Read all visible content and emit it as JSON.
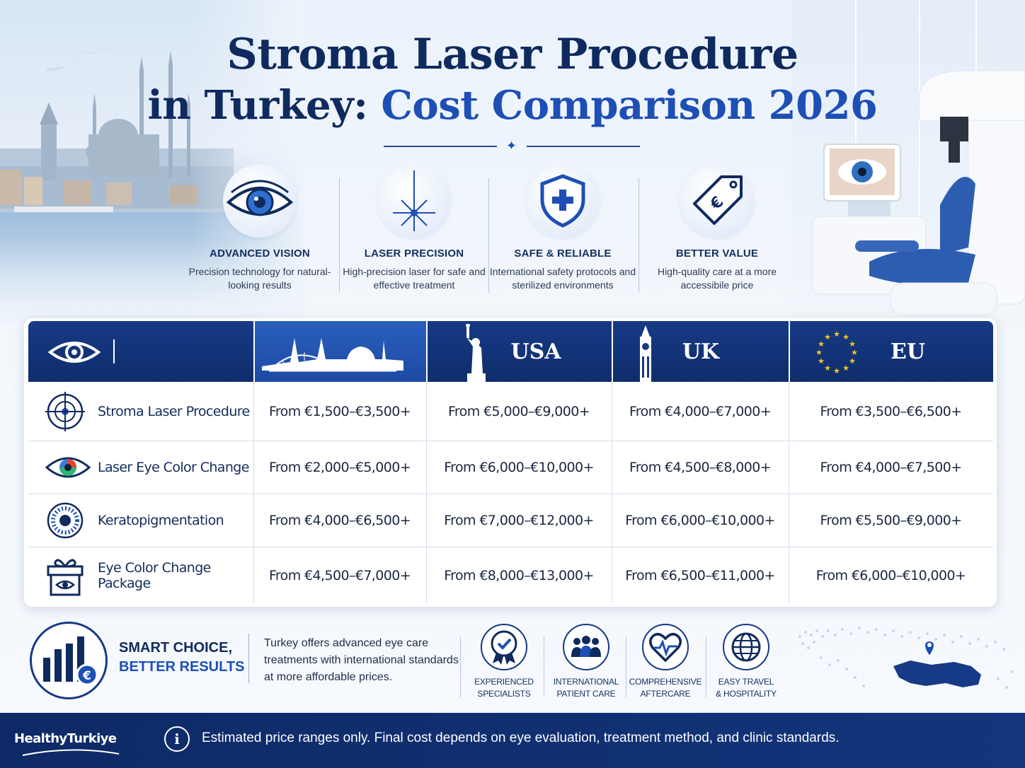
{
  "title": {
    "line1": "Stroma Laser Procedure",
    "line2_prefix": "in Turkey: ",
    "line2_highlight": "Cost Comparison 2026"
  },
  "features": [
    {
      "icon": "eye-icon",
      "title": "ADVANCED VISION",
      "description": "Precision technology for natural-looking results"
    },
    {
      "icon": "laser-icon",
      "title": "LASER PRECISION",
      "description": "High-precision laser for safe and effective treatment"
    },
    {
      "icon": "shield-icon",
      "title": "SAFE & RELIABLE",
      "description": "International safety protocols and sterilized environments"
    },
    {
      "icon": "price-tag-euro-icon",
      "title": "BETTER VALUE",
      "description": "High-quality care at a more accessibile price"
    }
  ],
  "table": {
    "header_icon": "eye-icon",
    "columns": [
      {
        "label": "",
        "icon": "istanbul-skyline-icon"
      },
      {
        "label": "USA",
        "icon": "statue-of-liberty-icon"
      },
      {
        "label": "UK",
        "icon": "big-ben-icon"
      },
      {
        "label": "EU",
        "icon": "eu-stars-icon"
      }
    ],
    "rows": [
      {
        "label": "Stroma Laser Procedure",
        "icon": "target-eye-icon",
        "values": [
          "From €1,500–€3,500+",
          "From €5,000–€9,000+",
          "From €4,000–€7,000+",
          "From €3,500–€6,500+"
        ]
      },
      {
        "label": "Laser Eye Color Change",
        "icon": "color-iris-icon",
        "values": [
          "From €2,000–€5,000+",
          "From €6,000–€10,000+",
          "From €4,500–€8,000+",
          "From €4,000–€7,500+"
        ]
      },
      {
        "label": "Keratopigmentation",
        "icon": "dotted-iris-icon",
        "values": [
          "From €4,000–€6,500+",
          "From €7,000–€12,000+",
          "From €6,000–€10,000+",
          "From €5,500–€9,000+"
        ]
      },
      {
        "label": "Eye Color Change Package",
        "icon": "gift-box-eye-icon",
        "values": [
          "From €4,500–€7,000+",
          "From €8,000–€13,000+",
          "From €6,500–€11,000+",
          "From €6,000–€10,000+"
        ]
      }
    ]
  },
  "smart_choice": {
    "icon": "bar-chart-euro-icon",
    "title_line1": "SMART CHOICE,",
    "title_line2": "BETTER RESULTS",
    "description": "Turkey offers advanced eye care treatments with international standards at more affordable prices."
  },
  "badges": [
    {
      "icon": "award-medal-icon",
      "line1": "EXPERIENCED",
      "line2": "SPECIALISTS"
    },
    {
      "icon": "people-group-icon",
      "line1": "INTERNATIONAL",
      "line2": "PATIENT CARE"
    },
    {
      "icon": "heart-pulse-icon",
      "line1": "COMPREHENSIVE",
      "line2": "AFTERCARE"
    },
    {
      "icon": "globe-icon",
      "line1": "EASY TRAVEL",
      "line2": "& HOSPITALITY"
    }
  ],
  "footer": {
    "logo": "HealthyTurkiye",
    "note": "Estimated price ranges only. Final cost depends on eye evaluation, treatment method, and clinic standards."
  },
  "colors": {
    "navy": "#0f2a5e",
    "brand_blue": "#1d4fb5",
    "header_navy": "#173a86",
    "footer_navy": "#0e2a66"
  }
}
